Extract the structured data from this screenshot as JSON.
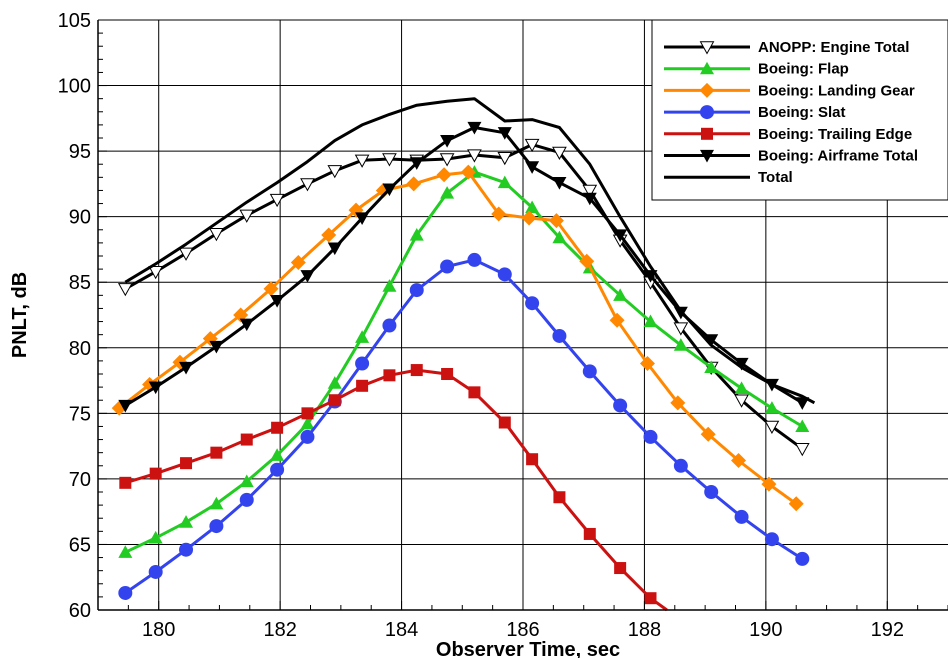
{
  "chart_data": {
    "type": "line",
    "title": "",
    "xlabel": "Observer Time, sec",
    "ylabel": "PNLT, dB",
    "xlim": [
      179,
      193
    ],
    "ylim": [
      60,
      105
    ],
    "xticks": [
      180,
      182,
      184,
      186,
      188,
      190,
      192
    ],
    "yticks": [
      60,
      65,
      70,
      75,
      80,
      85,
      90,
      95,
      100,
      105
    ],
    "grid": true,
    "legend_position": "top-right",
    "series": [
      {
        "name": "ANOPP: Engine Total",
        "color": "#000000",
        "marker": "triangle-down-open",
        "x": [
          179.45,
          179.95,
          180.45,
          180.95,
          181.45,
          181.95,
          182.45,
          182.9,
          183.35,
          183.8,
          184.25,
          184.75,
          185.2,
          185.7,
          186.15,
          186.6,
          187.1,
          187.6,
          188.1,
          188.6,
          189.1,
          189.6,
          190.1,
          190.6
        ],
        "y": [
          84.5,
          85.8,
          87.2,
          88.7,
          90.1,
          91.3,
          92.5,
          93.5,
          94.3,
          94.4,
          94.3,
          94.4,
          94.7,
          94.5,
          95.5,
          94.9,
          92.0,
          88.2,
          85.0,
          81.5,
          78.5,
          76.0,
          74.0,
          72.3
        ],
        "markers": [
          true,
          true,
          true,
          true,
          true,
          true,
          true,
          true,
          true,
          true,
          true,
          true,
          true,
          true,
          true,
          true,
          true,
          true,
          true,
          true,
          true,
          true,
          true,
          true
        ]
      },
      {
        "name": "Boeing: Flap",
        "color": "#22cc22",
        "marker": "triangle-up",
        "x": [
          179.45,
          179.95,
          180.45,
          180.95,
          181.45,
          181.95,
          182.45,
          182.9,
          183.35,
          183.8,
          184.25,
          184.75,
          185.2,
          185.7,
          186.15,
          186.6,
          187.1,
          187.6,
          188.1,
          188.6,
          189.1,
          189.6,
          190.1,
          190.6
        ],
        "y": [
          64.4,
          65.5,
          66.7,
          68.1,
          69.8,
          71.8,
          74.2,
          77.3,
          80.8,
          84.7,
          88.6,
          91.8,
          93.4,
          92.6,
          90.7,
          88.4,
          86.1,
          84.0,
          82.0,
          80.2,
          78.5,
          76.9,
          75.4,
          74.0
        ],
        "markers": [
          true,
          true,
          true,
          true,
          true,
          true,
          true,
          true,
          true,
          true,
          true,
          true,
          true,
          true,
          true,
          true,
          true,
          true,
          true,
          true,
          true,
          true,
          true,
          true
        ]
      },
      {
        "name": "Boeing: Landing Gear",
        "color": "#ff8800",
        "marker": "diamond",
        "x": [
          179.35,
          179.85,
          180.35,
          180.85,
          181.35,
          181.85,
          182.3,
          182.8,
          183.25,
          183.7,
          184.2,
          184.7,
          185.1,
          185.6,
          186.1,
          186.55,
          187.05,
          187.55,
          188.05,
          188.55,
          189.05,
          189.55,
          190.05,
          190.5
        ],
        "y": [
          75.4,
          77.2,
          78.9,
          80.7,
          82.5,
          84.5,
          86.5,
          88.6,
          90.5,
          92.0,
          92.5,
          93.2,
          93.4,
          90.2,
          89.9,
          89.7,
          86.6,
          82.1,
          78.8,
          75.8,
          73.4,
          71.4,
          69.6,
          68.1
        ],
        "markers": [
          true,
          true,
          true,
          true,
          true,
          true,
          true,
          true,
          true,
          true,
          true,
          true,
          true,
          true,
          true,
          true,
          true,
          true,
          true,
          true,
          true,
          true,
          true,
          true
        ]
      },
      {
        "name": "Boeing: Slat",
        "color": "#3344ee",
        "marker": "circle",
        "x": [
          179.45,
          179.95,
          180.45,
          180.95,
          181.45,
          181.95,
          182.45,
          182.9,
          183.35,
          183.8,
          184.25,
          184.75,
          185.2,
          185.7,
          186.15,
          186.6,
          187.1,
          187.6,
          188.1,
          188.6,
          189.1,
          189.6,
          190.1,
          190.6
        ],
        "y": [
          61.3,
          62.9,
          64.6,
          66.4,
          68.4,
          70.7,
          73.2,
          75.9,
          78.8,
          81.7,
          84.4,
          86.2,
          86.7,
          85.6,
          83.4,
          80.9,
          78.2,
          75.6,
          73.2,
          71.0,
          69.0,
          67.1,
          65.4,
          63.9
        ],
        "markers": [
          true,
          true,
          true,
          true,
          true,
          true,
          true,
          true,
          true,
          true,
          true,
          true,
          true,
          true,
          true,
          true,
          true,
          true,
          true,
          true,
          true,
          true,
          true,
          true
        ]
      },
      {
        "name": "Boeing: Trailing Edge",
        "color": "#cc1111",
        "marker": "square",
        "x": [
          179.45,
          179.95,
          180.45,
          180.95,
          181.45,
          181.95,
          182.45,
          182.9,
          183.35,
          183.8,
          184.25,
          184.75,
          185.2,
          185.7,
          186.15,
          186.6,
          187.1,
          187.6,
          188.1,
          188.37
        ],
        "y": [
          69.7,
          70.4,
          71.2,
          72.0,
          73.0,
          73.9,
          75.0,
          76.0,
          77.1,
          77.9,
          78.3,
          78.0,
          76.6,
          74.3,
          71.5,
          68.6,
          65.8,
          63.2,
          60.9,
          60.0
        ],
        "markers": [
          true,
          true,
          true,
          true,
          true,
          true,
          true,
          true,
          true,
          true,
          true,
          true,
          true,
          true,
          true,
          true,
          true,
          true,
          true,
          false
        ]
      },
      {
        "name": "Boeing: Airframe Total",
        "color": "#000000",
        "marker": "triangle-down",
        "x": [
          179.45,
          179.95,
          180.45,
          180.95,
          181.45,
          181.95,
          182.45,
          182.9,
          183.35,
          183.8,
          184.25,
          184.75,
          185.2,
          185.7,
          186.15,
          186.6,
          187.1,
          187.6,
          188.1,
          188.6,
          189.1,
          189.6,
          190.1,
          190.6
        ],
        "y": [
          75.6,
          77.0,
          78.5,
          80.1,
          81.8,
          83.6,
          85.5,
          87.6,
          89.9,
          92.1,
          94.1,
          95.8,
          96.8,
          96.4,
          93.8,
          92.6,
          91.4,
          88.6,
          85.5,
          82.7,
          80.6,
          78.8,
          77.2,
          75.8
        ],
        "markers": [
          true,
          true,
          true,
          true,
          true,
          true,
          true,
          true,
          true,
          true,
          true,
          true,
          true,
          true,
          true,
          true,
          true,
          true,
          true,
          true,
          true,
          true,
          true,
          true
        ]
      },
      {
        "name": "Total",
        "color": "#000000",
        "marker": "none",
        "x": [
          179.45,
          179.95,
          180.45,
          180.95,
          181.45,
          181.95,
          182.45,
          182.9,
          183.35,
          183.8,
          184.25,
          184.75,
          185.2,
          185.7,
          186.15,
          186.6,
          187.1,
          187.6,
          188.1,
          188.6,
          189.1,
          189.6,
          190.1,
          190.6,
          190.8
        ],
        "y": [
          85.0,
          86.4,
          87.9,
          89.5,
          91.1,
          92.6,
          94.2,
          95.8,
          97.0,
          97.8,
          98.5,
          98.8,
          99.0,
          97.3,
          97.4,
          96.8,
          94.0,
          90.0,
          86.2,
          82.8,
          80.2,
          78.5,
          77.2,
          76.3,
          75.8
        ],
        "markers": []
      }
    ]
  }
}
